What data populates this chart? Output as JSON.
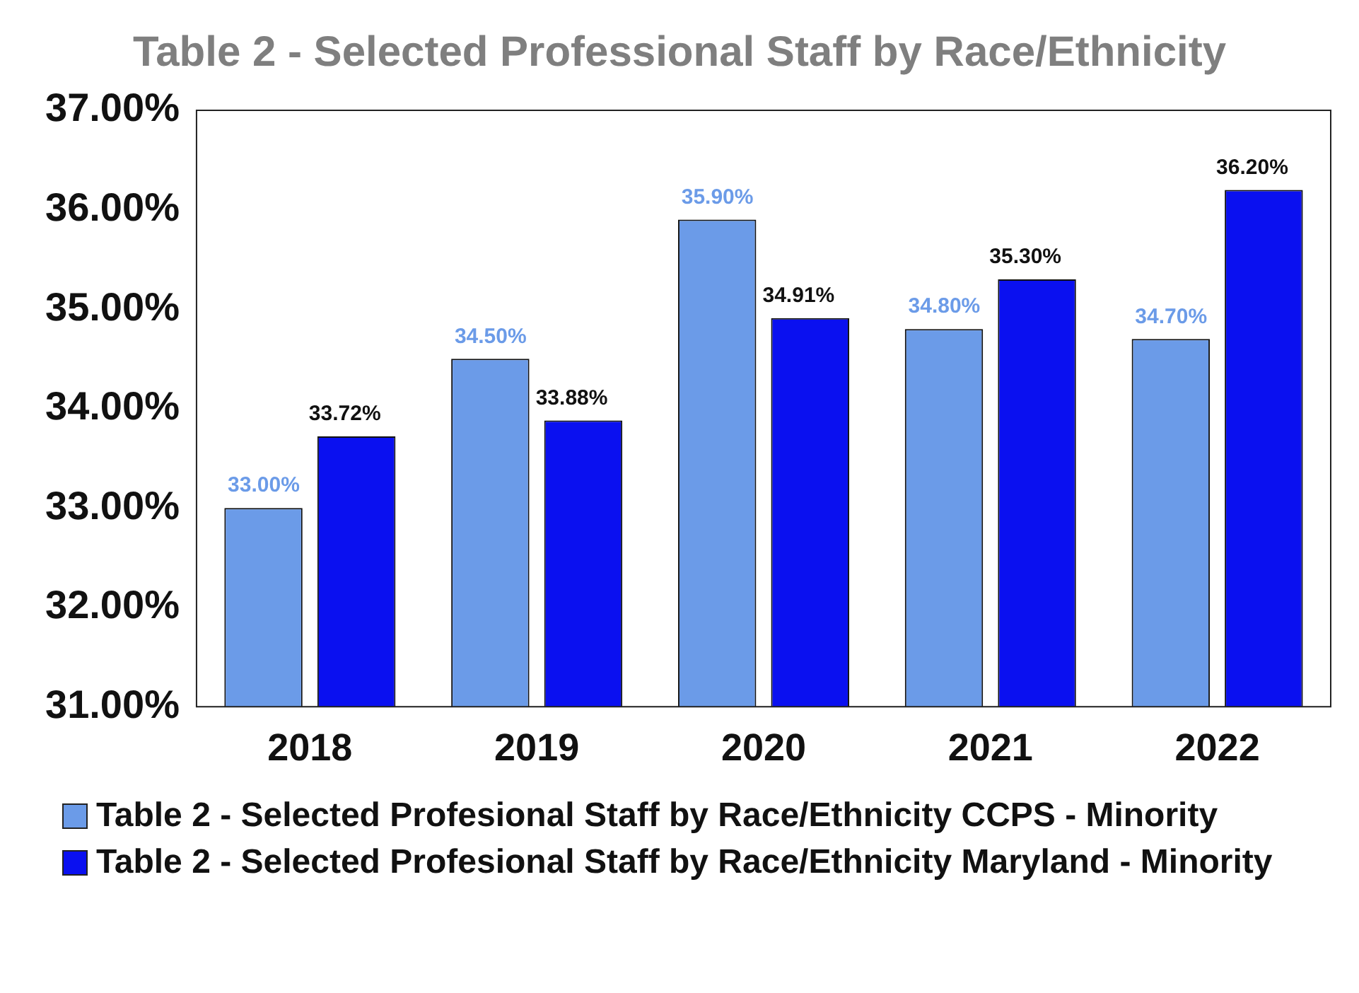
{
  "chart_data": {
    "type": "bar",
    "title": "Table 2 - Selected Professional Staff by Race/Ethnicity",
    "categories": [
      "2018",
      "2019",
      "2020",
      "2021",
      "2022"
    ],
    "series": [
      {
        "name": "Table 2 - Selected Profesional Staff by Race/Ethnicity CCPS - Minority",
        "color": "#6b9be8",
        "values": [
          33.0,
          34.5,
          35.9,
          34.8,
          34.7
        ],
        "value_labels": [
          "33.00%",
          "34.50%",
          "35.90%",
          "34.80%",
          "34.70%"
        ]
      },
      {
        "name": "Table 2 - Selected Profesional Staff by Race/Ethnicity Maryland - Minority",
        "color": "#0a10f0",
        "values": [
          33.72,
          33.88,
          34.91,
          35.3,
          36.2
        ],
        "value_labels": [
          "33.72%",
          "33.88%",
          "34.91%",
          "35.30%",
          "36.20%"
        ]
      }
    ],
    "ylim": [
      31,
      37
    ],
    "yticks": [
      {
        "value": 31,
        "label": "31.00%"
      },
      {
        "value": 32,
        "label": "32.00%"
      },
      {
        "value": 33,
        "label": "33.00%"
      },
      {
        "value": 34,
        "label": "34.00%"
      },
      {
        "value": 35,
        "label": "35.00%"
      },
      {
        "value": 36,
        "label": "36.00%"
      },
      {
        "value": 37,
        "label": "37.00%"
      }
    ],
    "grid": false,
    "legend": "bottom"
  }
}
